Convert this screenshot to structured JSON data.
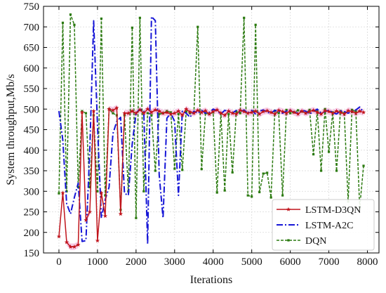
{
  "chart_data": {
    "type": "line",
    "title": "",
    "xlabel": "Iterations",
    "ylabel": "System throughput,Mb/s",
    "xlim": [
      -400,
      8300
    ],
    "ylim": [
      150,
      750
    ],
    "xticks": [
      0,
      1000,
      2000,
      3000,
      4000,
      5000,
      6000,
      7000,
      8000
    ],
    "yticks": [
      150,
      200,
      250,
      300,
      350,
      400,
      450,
      500,
      550,
      600,
      650,
      700,
      750
    ],
    "grid": true,
    "legend_position": "bottom-right",
    "series": [
      {
        "name": "LSTM-D3QN",
        "color": "#c0141c",
        "band_color": "#f4b9dd",
        "style": "solid-star",
        "x": [
          0,
          100,
          200,
          300,
          400,
          500,
          600,
          700,
          800,
          900,
          1000,
          1100,
          1200,
          1300,
          1400,
          1500,
          1600,
          1700,
          1800,
          1900,
          2000,
          2100,
          2200,
          2300,
          2400,
          2500,
          2600,
          2700,
          2800,
          2900,
          3000,
          3100,
          3200,
          3300,
          3400,
          3500,
          3600,
          3700,
          3800,
          3900,
          4000,
          4100,
          4200,
          4300,
          4400,
          4500,
          4600,
          4700,
          4800,
          4900,
          5000,
          5100,
          5200,
          5300,
          5400,
          5500,
          5600,
          5700,
          5800,
          5900,
          6000,
          6100,
          6200,
          6300,
          6400,
          6500,
          6600,
          6700,
          6800,
          6900,
          7000,
          7100,
          7200,
          7300,
          7400,
          7500,
          7600,
          7700,
          7800,
          7900
        ],
        "values": [
          190,
          296,
          176,
          165,
          165,
          170,
          492,
          230,
          250,
          495,
          180,
          296,
          240,
          500,
          497,
          503,
          245,
          490,
          490,
          495,
          490,
          498,
          490,
          500,
          492,
          498,
          495,
          490,
          492,
          488,
          490,
          495,
          485,
          500,
          493,
          490,
          497,
          492,
          496,
          488,
          494,
          498,
          490,
          485,
          495,
          490,
          488,
          497,
          494,
          490,
          492,
          495,
          488,
          494,
          496,
          492,
          488,
          497,
          494,
          490,
          496,
          492,
          488,
          495,
          490,
          494,
          497,
          492,
          488,
          496,
          494,
          490,
          495,
          492,
          488,
          496,
          494,
          490,
          495,
          492
        ]
      },
      {
        "name": "LSTM-A2C",
        "color": "#1515d6",
        "style": "dashdot",
        "x": [
          0,
          100,
          200,
          300,
          400,
          500,
          600,
          700,
          800,
          900,
          1000,
          1100,
          1200,
          1300,
          1400,
          1500,
          1600,
          1700,
          1800,
          1900,
          2000,
          2100,
          2200,
          2300,
          2400,
          2500,
          2600,
          2700,
          2800,
          2900,
          3000,
          3100,
          3200,
          3300,
          3400,
          3500,
          3600,
          3700,
          3800,
          3900,
          4000,
          4100,
          4200,
          4300,
          4400,
          4500,
          4600,
          4700,
          4800,
          4900,
          5000,
          5100,
          5200,
          5300,
          5400,
          5500,
          5600,
          5700,
          5800,
          5900,
          6000,
          6100,
          6200,
          6300,
          6400,
          6500,
          6600,
          6700,
          6800,
          6900,
          7000,
          7100,
          7200,
          7300,
          7400,
          7500,
          7600,
          7700,
          7800,
          7900
        ],
        "values": [
          495,
          425,
          270,
          245,
          285,
          320,
          178,
          180,
          400,
          715,
          460,
          235,
          280,
          310,
          440,
          470,
          480,
          295,
          290,
          415,
          490,
          500,
          495,
          172,
          725,
          715,
          340,
          235,
          478,
          490,
          470,
          290,
          495,
          490,
          480,
          495,
          490,
          497,
          490,
          492,
          500,
          495,
          488,
          497,
          494,
          490,
          497,
          492,
          498,
          490,
          497,
          488,
          495,
          498,
          492,
          490,
          497,
          494,
          490,
          495,
          498,
          492,
          490,
          497,
          495,
          488,
          494,
          500,
          490,
          494,
          497,
          492,
          488,
          496,
          494,
          490,
          495,
          498,
          505,
          492
        ]
      },
      {
        "name": "DQN",
        "color": "#2b7a10",
        "style": "dashed-square",
        "x": [
          0,
          100,
          200,
          300,
          400,
          500,
          600,
          700,
          800,
          900,
          1000,
          1100,
          1200,
          1300,
          1400,
          1500,
          1600,
          1700,
          1800,
          1900,
          2000,
          2100,
          2200,
          2300,
          2400,
          2500,
          2600,
          2700,
          2800,
          2900,
          3000,
          3100,
          3200,
          3300,
          3400,
          3500,
          3600,
          3700,
          3800,
          3900,
          4000,
          4100,
          4200,
          4300,
          4400,
          4500,
          4600,
          4700,
          4800,
          4900,
          5000,
          5100,
          5200,
          5300,
          5400,
          5500,
          5600,
          5700,
          5800,
          5900,
          6000,
          6100,
          6200,
          6300,
          6400,
          6500,
          6600,
          6700,
          6800,
          6900,
          7000,
          7100,
          7200,
          7300,
          7400,
          7500,
          7600,
          7700,
          7800,
          7900
        ],
        "values": [
          295,
          710,
          300,
          730,
          705,
          310,
          495,
          490,
          310,
          485,
          300,
          720,
          290,
          500,
          490,
          485,
          255,
          485,
          300,
          698,
          235,
          722,
          300,
          490,
          485,
          350,
          488,
          490,
          495,
          492,
          355,
          488,
          352,
          494,
          490,
          492,
          700,
          354,
          490,
          488,
          492,
          297,
          490,
          302,
          488,
          346,
          494,
          490,
          722,
          290,
          287,
          705,
          298,
          343,
          345,
          285,
          496,
          490,
          290,
          498,
          490,
          492,
          497,
          494,
          490,
          498,
          390,
          495,
          350,
          500,
          396,
          492,
          350,
          495,
          490,
          275,
          498,
          494,
          260,
          362
        ]
      }
    ]
  }
}
